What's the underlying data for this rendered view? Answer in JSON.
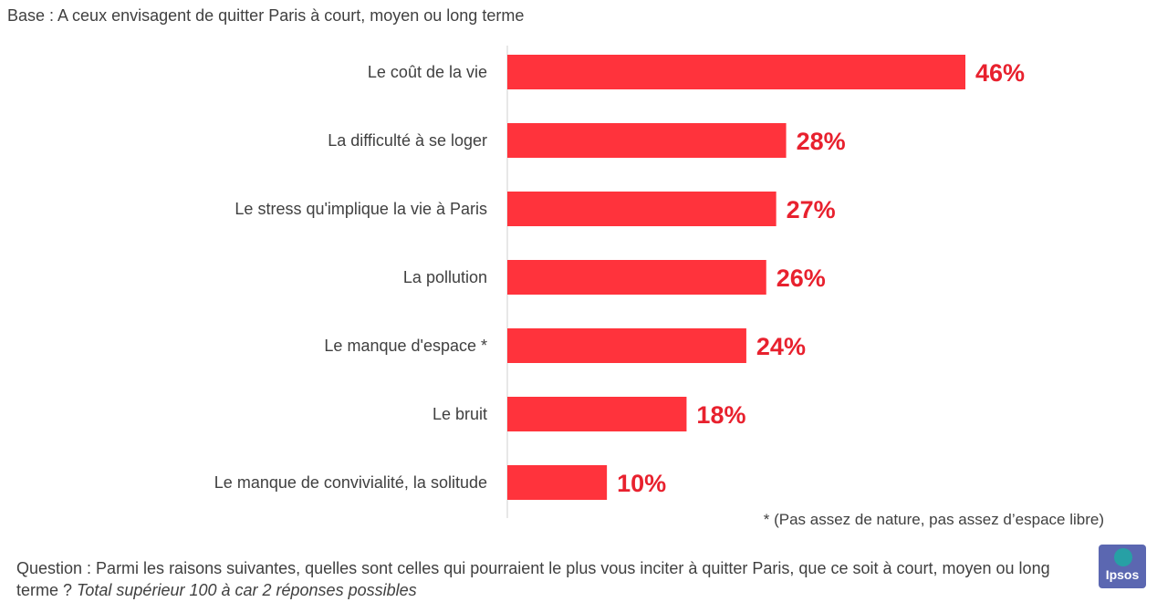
{
  "base_note": "Base : A ceux envisagent de quitter Paris à court, moyen ou long terme",
  "chart_data": {
    "type": "bar",
    "orientation": "horizontal",
    "categories": [
      "Le coût de la vie",
      "La difficulté à se loger",
      "Le stress qu'implique la vie à Paris",
      "La pollution",
      "Le manque d'espace *",
      "Le bruit",
      "Le manque de convivialité, la solitude"
    ],
    "values": [
      46,
      28,
      27,
      26,
      24,
      18,
      10
    ],
    "value_labels": [
      "46%",
      "28%",
      "27%",
      "26%",
      "24%",
      "18%",
      "10%"
    ],
    "unit": "%",
    "xlim": [
      0,
      60
    ],
    "grid": false,
    "legend": "none",
    "bar_color": "#ff333c",
    "label_color": "#e8212e"
  },
  "footnote": "* (Pas assez de nature, pas assez d’espace libre)",
  "question": {
    "text": "Question : Parmi les raisons suivantes, quelles sont celles qui pourraient le plus vous inciter à quitter Paris, que ce soit à court, moyen ou long terme ?",
    "italic": "Total supérieur 100 à car 2 réponses possibles"
  },
  "logo": {
    "text": "Ipsos",
    "color": "#5b67b1",
    "accent": "#27a0a5"
  }
}
